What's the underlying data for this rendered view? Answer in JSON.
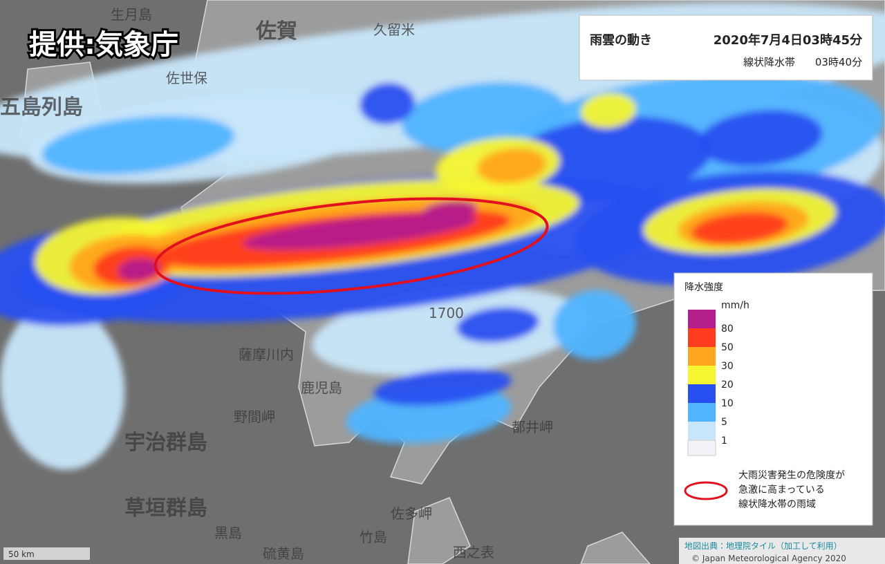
{
  "credit": "提供:気象庁",
  "info": {
    "title": "雨雲の動き",
    "datetime": "2020年7月4日03時45分",
    "subtitle": "線状降水帯",
    "subtime": "03時40分"
  },
  "legend": {
    "title": "降水強度",
    "unit": "mm/h",
    "levels": [
      {
        "value": 80,
        "color": "#b41e8c"
      },
      {
        "value": 50,
        "color": "#ff3c1e"
      },
      {
        "value": 30,
        "color": "#ffa51e"
      },
      {
        "value": 20,
        "color": "#f5f532"
      },
      {
        "value": 10,
        "color": "#2850f0"
      },
      {
        "value": 5,
        "color": "#50b4ff"
      },
      {
        "value": 1,
        "color": "#c8e6fa"
      }
    ],
    "bottom_color": "#f2f2f7",
    "band_note": [
      "大雨災害発生の危険度が",
      "急激に高まっている",
      "線状降水帯の雨域"
    ]
  },
  "map_labels": [
    "生月島",
    "佐賀",
    "久留米",
    "五島列島",
    "佐世保",
    "薩摩川内",
    "鹿児島",
    "野間岬",
    "宇治群島",
    "草垣群島",
    "都井岬",
    "佐多岬",
    "黒島",
    "竹島",
    "硫黄島",
    "西之表",
    "1700"
  ],
  "scale": "50 km",
  "footer": {
    "source": "地図出典：地理院タイル（加工して利用）",
    "copyright": "© Japan Meteorological Agency 2020"
  }
}
